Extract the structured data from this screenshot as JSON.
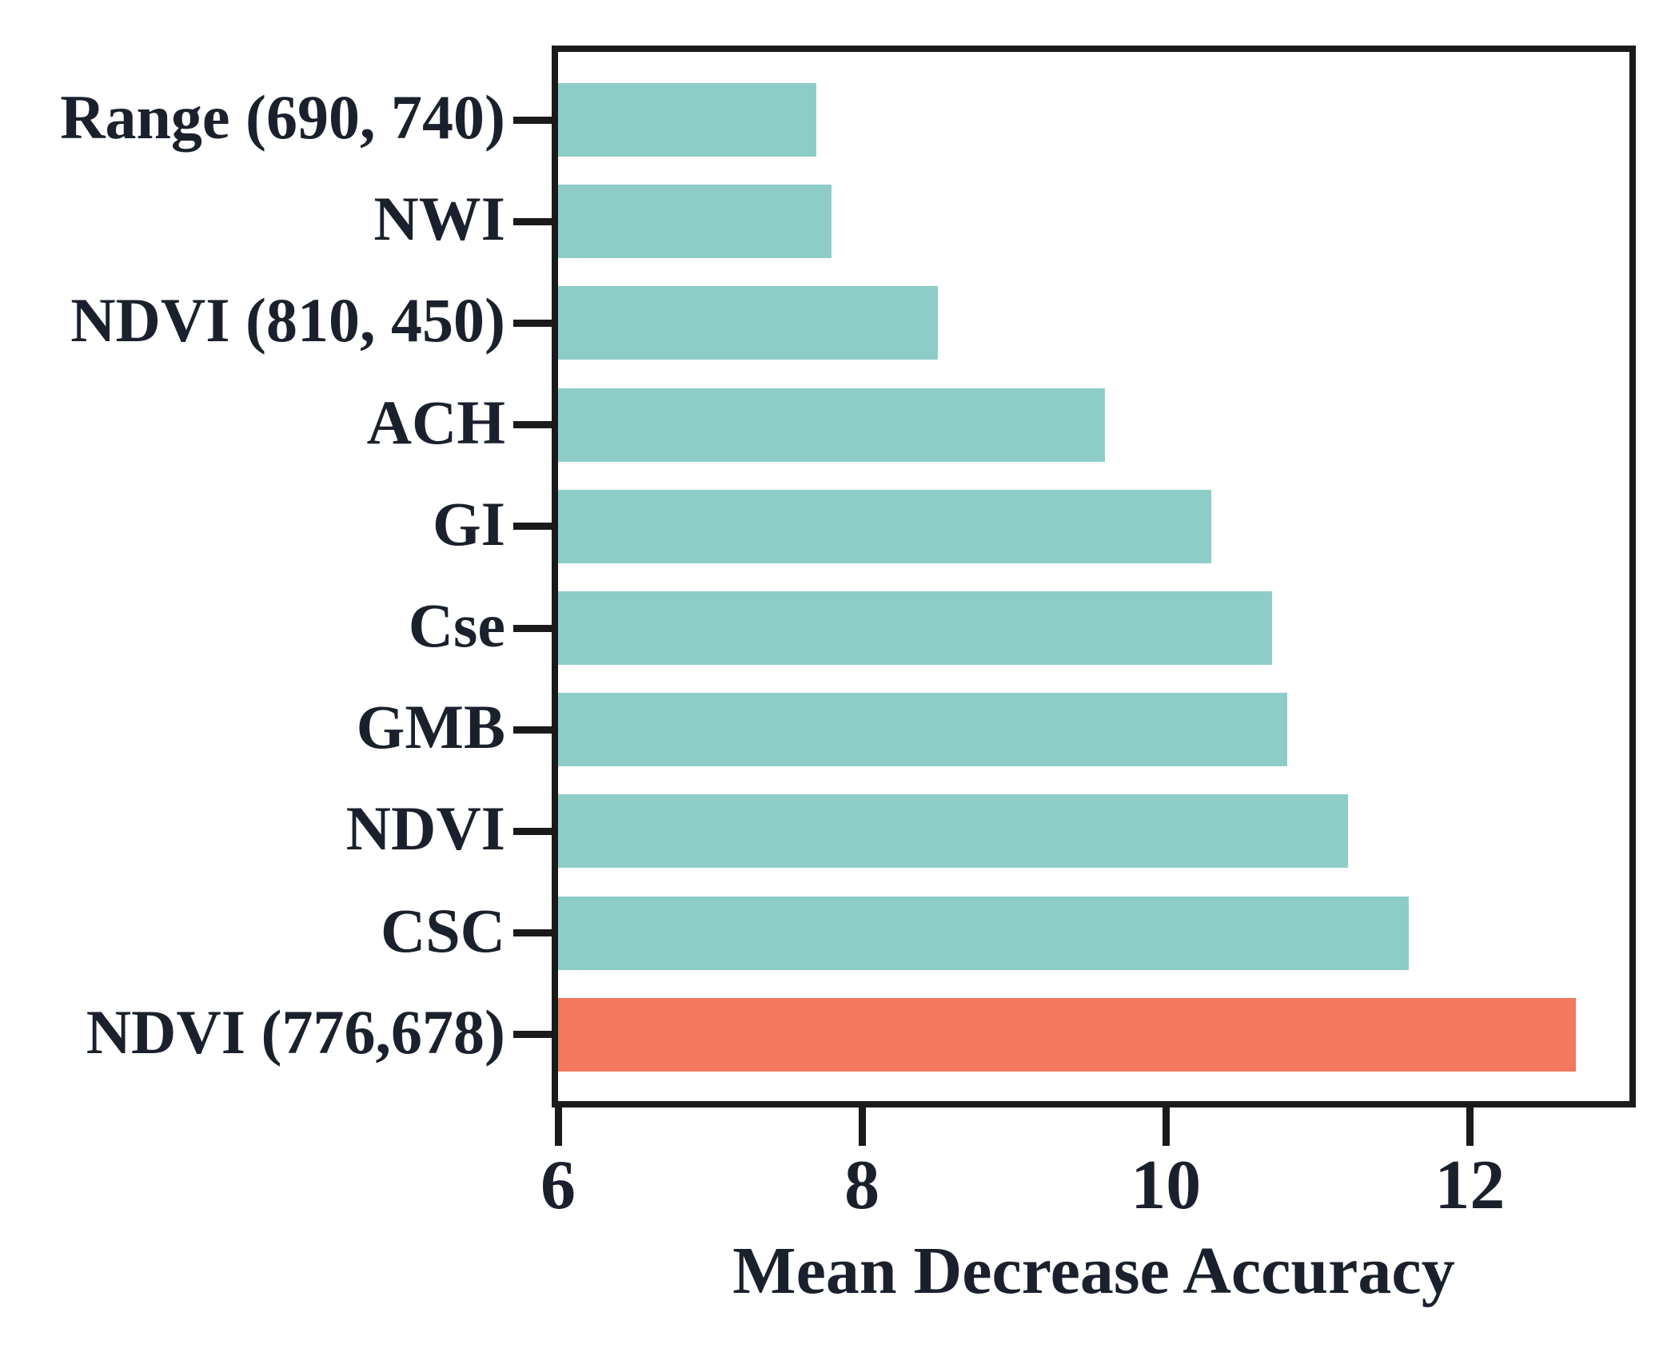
{
  "chart_data": {
    "type": "bar",
    "orientation": "horizontal",
    "title": "",
    "xlabel": "Mean Decrease Accuracy",
    "ylabel": "",
    "categories": [
      "Range (690, 740)",
      "NWI",
      "NDVI (810, 450)",
      "ACH",
      "GI",
      "Cse",
      "GMB",
      "NDVI",
      "CSC",
      "NDVI (776,678)"
    ],
    "values": [
      7.7,
      7.8,
      8.5,
      9.6,
      10.3,
      10.7,
      10.8,
      11.2,
      11.6,
      12.7
    ],
    "xlim": [
      6,
      13.05
    ],
    "xticks": [
      "6",
      "8",
      "10",
      "12"
    ],
    "xtick_values": [
      6,
      8,
      10,
      12
    ],
    "grid": false,
    "legend": "none",
    "highlight_index": 9,
    "colors": {
      "bar_default": "#8ECDC7",
      "bar_highlight": "#F4775F",
      "axis": "#1a1a1a",
      "text": "#1b212c",
      "background": "#ffffff"
    }
  }
}
